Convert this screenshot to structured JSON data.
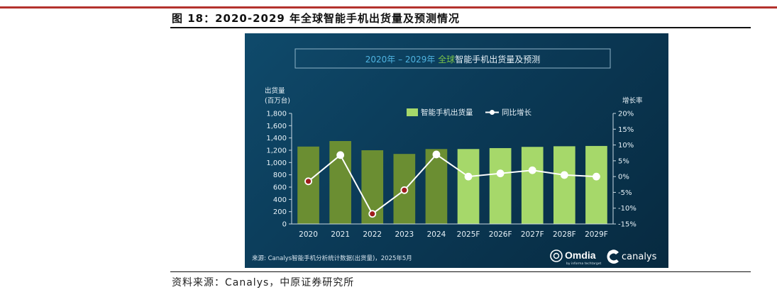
{
  "figure": {
    "title": "图 18：2020-2029 年全球智能手机出货量及预测情况",
    "source": "资料来源：Canalys，中原证券研究所"
  },
  "brands": {
    "omdia": "Omdia",
    "omdia_sub": "by informa techtarget",
    "canalys": "canalys"
  },
  "colors": {
    "bar_actual": "#6b8e32",
    "bar_forecast": "#a6d86a",
    "line": "#ffffff",
    "point_negative": "#9e1c1c",
    "point_positive": "#ffffff",
    "accent_title": "#79c24a"
  },
  "chart_data": {
    "type": "bar",
    "title_prefix": "2020年 – 2029年 ",
    "title_highlight": "全球",
    "title_suffix": "智能手机出货量及预测",
    "ylabel_line1": "出货量",
    "ylabel_line2": "(百万台)",
    "y2label": "增长率",
    "categories": [
      "2020",
      "2021",
      "2022",
      "2023",
      "2024",
      "2025F",
      "2026F",
      "2027F",
      "2028F",
      "2029F"
    ],
    "ylim": [
      0,
      1800
    ],
    "y_ticks": [
      "0",
      "200",
      "400",
      "600",
      "800",
      "1,000",
      "1,200",
      "1,400",
      "1,600",
      "1,800"
    ],
    "y_tick_values": [
      0,
      200,
      400,
      600,
      800,
      1000,
      1200,
      1400,
      1600,
      1800
    ],
    "y2lim": [
      -15,
      20
    ],
    "y2_ticks": [
      "-15%",
      "-10%",
      "-5%",
      "0%",
      "5%",
      "10%",
      "15%",
      "20%"
    ],
    "y2_tick_values": [
      -15,
      -10,
      -5,
      0,
      5,
      10,
      15,
      20
    ],
    "series": [
      {
        "name": "智能手机出货量",
        "axis": "left",
        "values": [
          1260,
          1350,
          1200,
          1140,
          1220,
          1220,
          1235,
          1255,
          1265,
          1270
        ]
      },
      {
        "name": "同比增长",
        "axis": "right",
        "type": "line",
        "values": [
          -1.5,
          6.8,
          -11.8,
          -4.3,
          7.0,
          0.0,
          1.0,
          2.0,
          0.5,
          0.0
        ]
      }
    ],
    "forecast_start_index": 5,
    "legend": "top-center",
    "grid": false,
    "source_note": "来源: Canalys智能手机分析统计数据(出货量)，2025年5月"
  }
}
